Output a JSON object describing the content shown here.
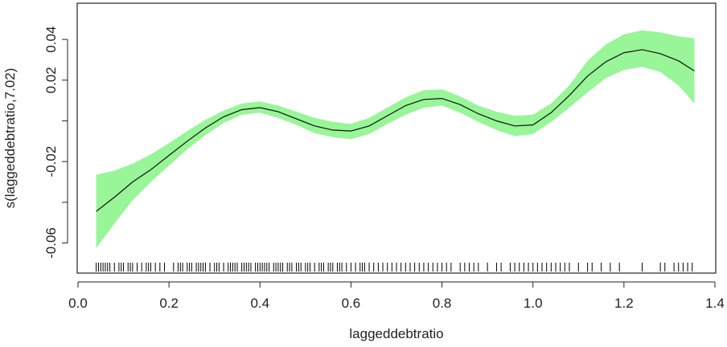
{
  "chart_data": {
    "type": "line",
    "title": "",
    "xlabel": "laggeddebtratio",
    "ylabel": "s(laggeddebtratio,7.02)",
    "xlim": [
      0.0,
      1.4
    ],
    "ylim": [
      -0.074,
      0.057
    ],
    "x_ticks": [
      "0.0",
      "0.2",
      "0.4",
      "0.6",
      "0.8",
      "1.0",
      "1.2",
      "1.4"
    ],
    "y_ticks": [
      "-0.06",
      "-0.02",
      "0.02",
      "0.04"
    ],
    "grid": false,
    "colors": {
      "band": "#98f598",
      "line": "#111111",
      "rug": "#000000",
      "frame": "#222222"
    },
    "series": [
      {
        "x": [
          0.04,
          0.08,
          0.12,
          0.16,
          0.2,
          0.24,
          0.28,
          0.32,
          0.36,
          0.4,
          0.44,
          0.48,
          0.52,
          0.56,
          0.6,
          0.64,
          0.68,
          0.72,
          0.76,
          0.8,
          0.84,
          0.88,
          0.92,
          0.96,
          1.0,
          1.04,
          1.08,
          1.12,
          1.16,
          1.2,
          1.24,
          1.28,
          1.32,
          1.355
        ],
        "fit": [
          -0.0445,
          -0.0375,
          -0.03,
          -0.024,
          -0.017,
          -0.01,
          -0.0035,
          0.002,
          0.0055,
          0.0065,
          0.0045,
          0.001,
          -0.0025,
          -0.0045,
          -0.005,
          -0.0025,
          0.0025,
          0.0075,
          0.0105,
          0.011,
          0.008,
          0.0035,
          0.0,
          -0.0025,
          -0.002,
          0.004,
          0.0125,
          0.022,
          0.029,
          0.0335,
          0.035,
          0.033,
          0.0295,
          0.0245
        ],
        "lower": [
          -0.0625,
          -0.0505,
          -0.039,
          -0.03,
          -0.022,
          -0.014,
          -0.007,
          -0.001,
          0.003,
          0.004,
          0.0015,
          -0.002,
          -0.006,
          -0.008,
          -0.009,
          -0.0065,
          -0.0015,
          0.003,
          0.0065,
          0.0075,
          0.004,
          -0.0005,
          -0.0045,
          -0.0075,
          -0.0065,
          -0.0005,
          0.0065,
          0.014,
          0.021,
          0.025,
          0.0265,
          0.024,
          0.0175,
          0.0085
        ],
        "upper": [
          -0.0265,
          -0.0245,
          -0.021,
          -0.0165,
          -0.011,
          -0.005,
          0.0005,
          0.005,
          0.0085,
          0.0095,
          0.0075,
          0.0045,
          0.0015,
          -0.0005,
          -0.0015,
          0.0015,
          0.0065,
          0.0115,
          0.015,
          0.0155,
          0.012,
          0.0075,
          0.0045,
          0.0025,
          0.003,
          0.0085,
          0.0175,
          0.0295,
          0.0375,
          0.0425,
          0.0445,
          0.0435,
          0.0415,
          0.0405
        ]
      }
    ],
    "rug": [
      0.04,
      0.045,
      0.05,
      0.055,
      0.06,
      0.065,
      0.07,
      0.08,
      0.09,
      0.095,
      0.1,
      0.11,
      0.115,
      0.12,
      0.13,
      0.14,
      0.15,
      0.155,
      0.16,
      0.17,
      0.18,
      0.19,
      0.21,
      0.22,
      0.225,
      0.23,
      0.24,
      0.245,
      0.25,
      0.26,
      0.265,
      0.27,
      0.275,
      0.28,
      0.29,
      0.3,
      0.305,
      0.31,
      0.32,
      0.33,
      0.335,
      0.34,
      0.345,
      0.35,
      0.36,
      0.365,
      0.37,
      0.375,
      0.38,
      0.39,
      0.395,
      0.4,
      0.405,
      0.41,
      0.415,
      0.42,
      0.43,
      0.435,
      0.44,
      0.445,
      0.45,
      0.46,
      0.465,
      0.47,
      0.48,
      0.485,
      0.49,
      0.5,
      0.505,
      0.51,
      0.52,
      0.53,
      0.535,
      0.54,
      0.55,
      0.555,
      0.56,
      0.57,
      0.575,
      0.58,
      0.59,
      0.6,
      0.61,
      0.62,
      0.625,
      0.63,
      0.64,
      0.65,
      0.66,
      0.67,
      0.68,
      0.69,
      0.7,
      0.71,
      0.72,
      0.73,
      0.74,
      0.75,
      0.76,
      0.77,
      0.78,
      0.79,
      0.8,
      0.81,
      0.82,
      0.84,
      0.85,
      0.86,
      0.87,
      0.88,
      0.9,
      0.92,
      0.93,
      0.95,
      0.96,
      0.97,
      0.98,
      0.99,
      1.0,
      1.01,
      1.02,
      1.03,
      1.04,
      1.05,
      1.06,
      1.07,
      1.08,
      1.1,
      1.12,
      1.13,
      1.15,
      1.17,
      1.19,
      1.24,
      1.28,
      1.29,
      1.31,
      1.32,
      1.33,
      1.34,
      1.35
    ]
  }
}
